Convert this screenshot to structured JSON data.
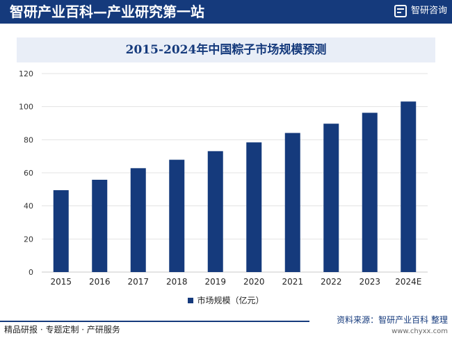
{
  "header": {
    "title": "智研产业百科—产业研究第一站",
    "brand": "智研咨询"
  },
  "footer": {
    "services": "精品研报 · 专题定制 · 产研服务",
    "source": "资料来源：智研产业百科 整理",
    "url": "www.chyxx.com"
  },
  "colors": {
    "bar": "#153a7c",
    "header": "#153a7c"
  },
  "chart_data": {
    "type": "bar",
    "title": "2015-2024年中国粽子市场规模预测",
    "categories": [
      "2015",
      "2016",
      "2017",
      "2018",
      "2019",
      "2020",
      "2021",
      "2022",
      "2023",
      "2024E"
    ],
    "series": [
      {
        "name": "市场规模（亿元）",
        "values": [
          49.5,
          55.8,
          62.8,
          67.9,
          73.1,
          78.4,
          84.1,
          89.7,
          96.3,
          103.1
        ]
      }
    ],
    "yticks": [
      "0",
      "20",
      "40",
      "60",
      "80",
      "100",
      "120"
    ],
    "ylim": [
      0,
      120
    ],
    "grid": true,
    "legend": "bottom"
  }
}
